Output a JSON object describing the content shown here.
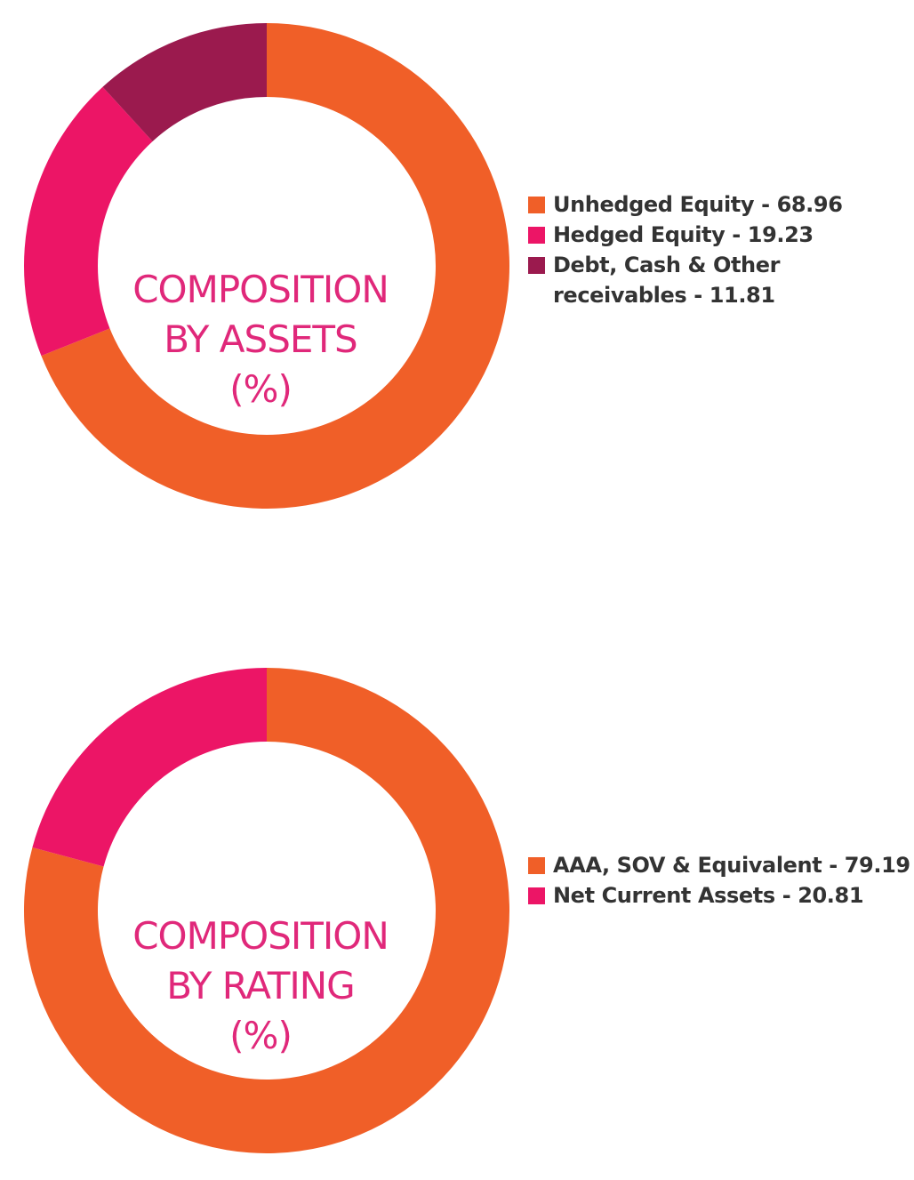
{
  "chart_data": [
    {
      "type": "pie",
      "title": "",
      "center_label": [
        "COMPOSITION",
        "BY ASSETS",
        "(%)"
      ],
      "categories": [
        "Unhedged Equity",
        "Hedged Equity",
        "Debt, Cash & Other receivables"
      ],
      "values": [
        68.96,
        19.23,
        11.81
      ],
      "legend_labels": [
        "Unhedged Equity - 68.96",
        "Hedged Equity - 19.23",
        "Debt, Cash & Other receivables - 11.81"
      ],
      "colors": [
        "#f05f28",
        "#ec1566",
        "#9b1a4e"
      ],
      "legend_position": "right"
    },
    {
      "type": "pie",
      "title": "",
      "center_label": [
        "COMPOSITION",
        "BY RATING",
        "(%)"
      ],
      "categories": [
        "AAA, SOV & Equivalent",
        "Net Current Assets"
      ],
      "values": [
        79.19,
        20.81
      ],
      "legend_labels": [
        "AAA, SOV & Equivalent - 79.19",
        "Net Current Assets - 20.81"
      ],
      "colors": [
        "#f05f28",
        "#ec1566"
      ],
      "legend_position": "right"
    }
  ]
}
